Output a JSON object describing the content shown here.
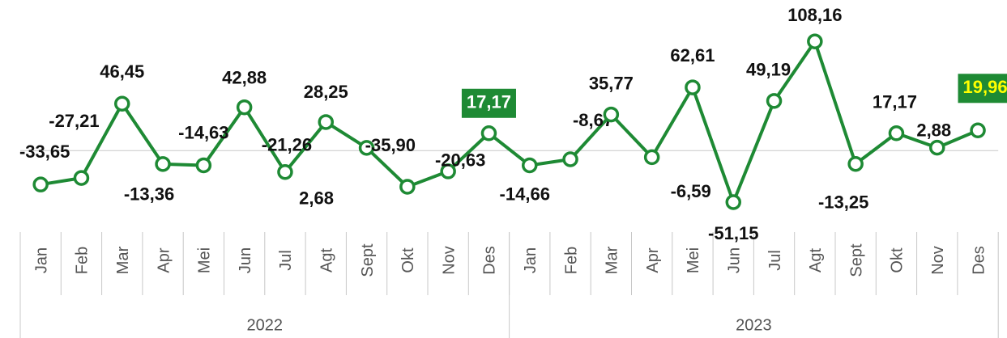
{
  "chart_data": {
    "type": "line",
    "groups": [
      {
        "name": "2022",
        "categories": [
          "Jan",
          "Feb",
          "Mar",
          "Apr",
          "Mei",
          "Jun",
          "Jul",
          "Agt",
          "Sept",
          "Okt",
          "Nov",
          "Des"
        ]
      },
      {
        "name": "2023",
        "categories": [
          "Jan",
          "Feb",
          "Mar",
          "Apr",
          "Mei",
          "Jun",
          "Jul",
          "Agt",
          "Sept",
          "Okt",
          "Nov",
          "Des"
        ]
      }
    ],
    "series": [
      {
        "color": "#1e8a34",
        "values": [
          -33.65,
          -27.21,
          46.45,
          -13.36,
          -14.63,
          42.88,
          -21.26,
          28.25,
          2.68,
          -35.9,
          -20.63,
          17.17,
          -14.66,
          -8.67,
          35.77,
          -6.59,
          62.61,
          -51.15,
          49.19,
          108.16,
          -13.25,
          17.17,
          2.88,
          19.96
        ],
        "value_labels": [
          "-33,65",
          "-27,21",
          "46,45",
          "-13,36",
          "-14,63",
          "42,88",
          "-21,26",
          "28,25",
          "2,68",
          "-35,90",
          "-20,63",
          "17,17",
          "-14,66",
          "-8,67",
          "35,77",
          "-6,59",
          "62,61",
          "-51,15",
          "49,19",
          "108,16",
          "-13,25",
          "17,17",
          "2,88",
          "19,96"
        ]
      }
    ],
    "ylim": [
      -80,
      130
    ],
    "highlights": [
      {
        "index": 11,
        "fill": "#1e8a34",
        "text_color": "#ffffff"
      },
      {
        "index": 23,
        "fill": "#1e8a34",
        "text_color": "#ffff00"
      }
    ]
  }
}
